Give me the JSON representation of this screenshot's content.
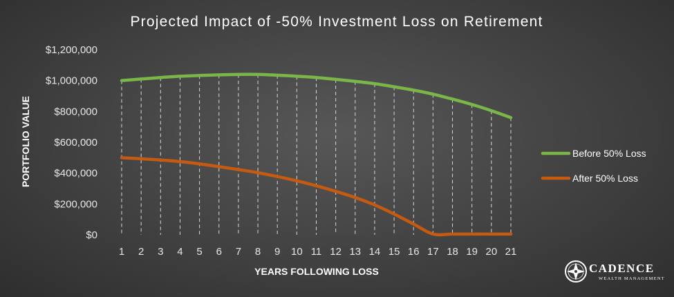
{
  "chart_data": {
    "type": "line",
    "title": "Projected Impact of -50% Investment Loss on Retirement",
    "xlabel": "YEARS FOLLOWING LOSS",
    "ylabel": "PORTFOLIO VALUE",
    "ylim": [
      0,
      1200000
    ],
    "yticks": [
      "$0",
      "$200,000",
      "$400,000",
      "$600,000",
      "$800,000",
      "$1,000,000",
      "$1,200,000"
    ],
    "ytick_values": [
      0,
      200000,
      400000,
      600000,
      800000,
      1000000,
      1200000
    ],
    "x": [
      1,
      2,
      3,
      4,
      5,
      6,
      7,
      8,
      9,
      10,
      11,
      12,
      13,
      14,
      15,
      16,
      17,
      18,
      19,
      20,
      21
    ],
    "grid": "vertical dashed drop lines between series",
    "legend_position": "right",
    "series": [
      {
        "name": "Before 50% Loss",
        "color": "#7ab648",
        "values": [
          1000000,
          1010000,
          1020000,
          1028000,
          1033000,
          1037000,
          1040000,
          1040000,
          1035000,
          1028000,
          1020000,
          1008000,
          995000,
          980000,
          960000,
          938000,
          912000,
          880000,
          845000,
          805000,
          760000
        ]
      },
      {
        "name": "After 50% Loss",
        "color": "#c55a11",
        "values": [
          500000,
          493000,
          485000,
          475000,
          460000,
          442000,
          423000,
          403000,
          378000,
          350000,
          318000,
          282000,
          242000,
          194000,
          135000,
          70000,
          5000,
          5000,
          5000,
          5000,
          5000
        ]
      }
    ]
  },
  "logo": {
    "name": "CADENCE",
    "tagline": "WEALTH MANAGEMENT",
    "icon": "compass-star-icon"
  }
}
